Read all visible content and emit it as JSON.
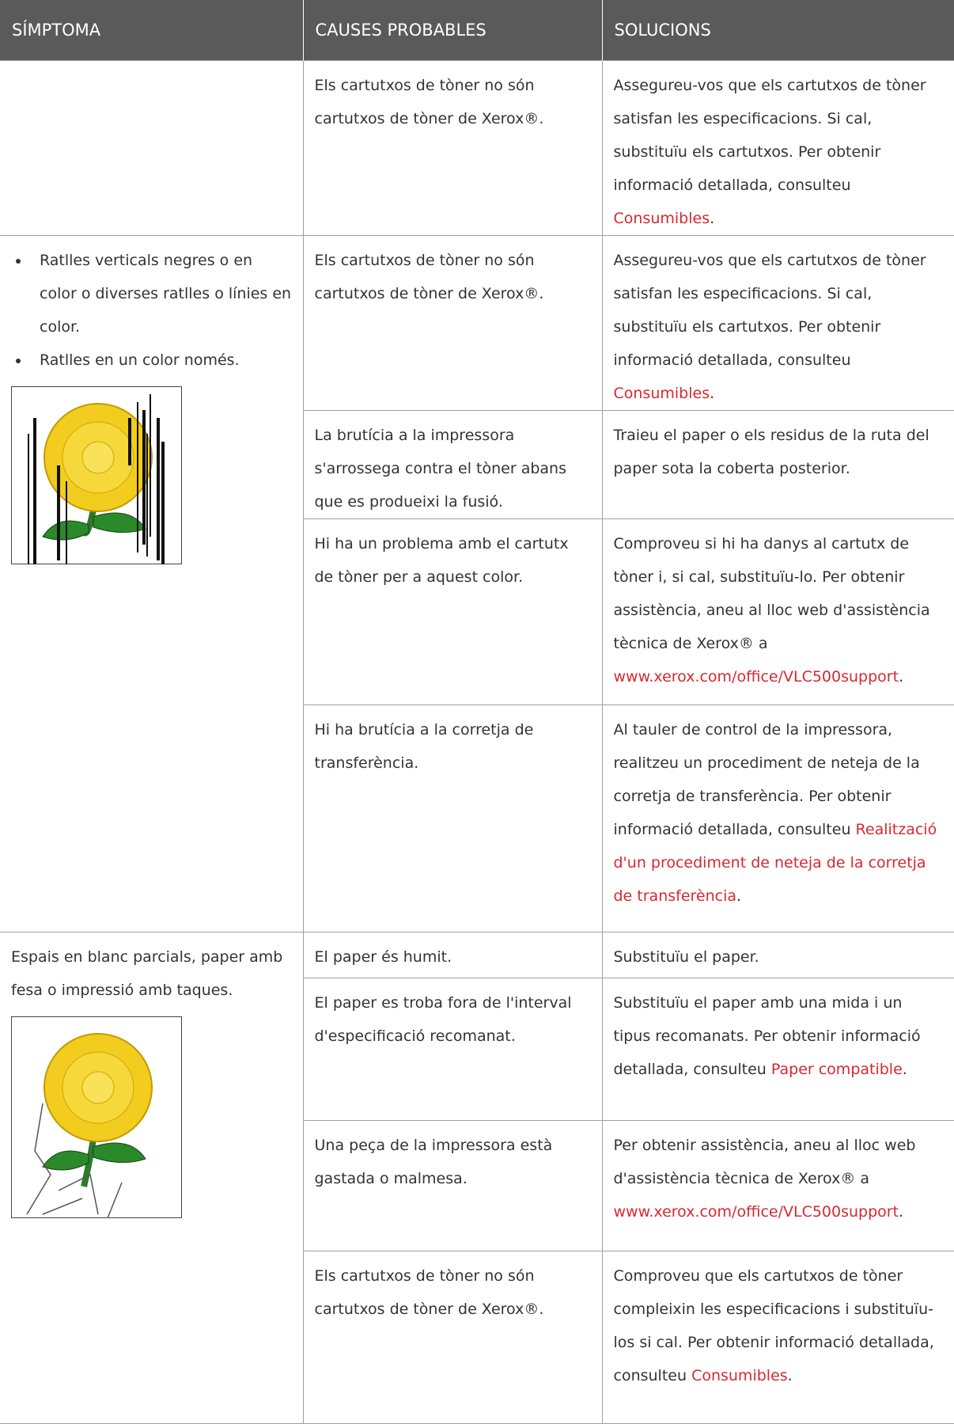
{
  "header": {
    "columns": [
      "SÍMPTOMA",
      "CAUSES PROBABLES",
      "SOLUCIONS"
    ]
  },
  "groups": [
    {
      "causes": [
        {
          "cause": "Els cartutxos de tòner no són cartutxos de tòner de Xerox®.",
          "solution": {
            "before": "Assegureu-vos que els cartutxos de tòner satisfan les especificacions. Si cal, substituïu els cartutxos. Per obtenir informació detallada, consulteu ",
            "link": "Consumibles",
            "after": "."
          }
        }
      ]
    },
    {
      "symptom_bullets": [
        "Ratlles verticals negres o en color o diverses ratlles o línies en color.",
        "Ratlles en un color només."
      ],
      "causes": [
        {
          "cause": "Els cartutxos de tòner no són cartutxos de tòner de Xerox®.",
          "solution": {
            "before": "Assegureu-vos que els cartutxos de tòner satisfan les especificacions. Si cal, substituïu els cartutxos. Per obtenir informació detallada, consulteu ",
            "link": "Consumibles",
            "after": "."
          }
        },
        {
          "cause": "La brutícia a la impressora s'arrossega contra el tòner abans que es produeixi la fusió.",
          "solution": "Traieu el paper o els residus de la ruta del paper sota la coberta posterior."
        },
        {
          "cause": "Hi ha un problema amb el cartutx de tòner per a aquest color.",
          "solution": {
            "before": "Comproveu si hi ha danys al cartutx de tòner i, si cal, substituïu-lo. Per obtenir assistència, aneu al lloc web d'assistència tècnica de Xerox® a ",
            "link": "www.xerox.com/office/VLC500support",
            "after": "."
          }
        },
        {
          "cause": "Hi ha brutícia a la corretja de transferència.",
          "solution": {
            "before": "Al tauler de control de la impressora, realitzeu un procediment de neteja de la corretja de transferència. Per obtenir informació detallada, consulteu ",
            "link": "Realització d'un procediment de neteja de la corretja de transferència",
            "after": "."
          }
        }
      ]
    },
    {
      "symptom": "Espais en blanc parcials, paper amb fesa o impressió amb taques.",
      "causes": [
        {
          "cause": "El paper és humit.",
          "solution": "Substituïu el paper."
        },
        {
          "cause": "El paper es troba fora de l'interval d'especificació recomanat.",
          "solution": {
            "before": "Substituïu el paper amb una mida i un tipus recomanats. Per obtenir informació detallada, consulteu ",
            "link": "Paper compatible",
            "after": "."
          }
        },
        {
          "cause": "Una peça de la impressora està gastada o malmesa.",
          "solution": {
            "before": "Per obtenir assistència, aneu al lloc web d'assistència tècnica de Xerox® a ",
            "link": "www.xerox.com/office/VLC500support",
            "after": "."
          }
        },
        {
          "cause": "Els cartutxos de tòner no són cartutxos de tòner de Xerox®.",
          "solution": {
            "before": "Comproveu que els cartutxos de tòner compleixin les especificacions i substituïu-los si cal. Per obtenir informació detallada, consulteu ",
            "link": "Consumibles",
            "after": "."
          }
        }
      ]
    }
  ]
}
